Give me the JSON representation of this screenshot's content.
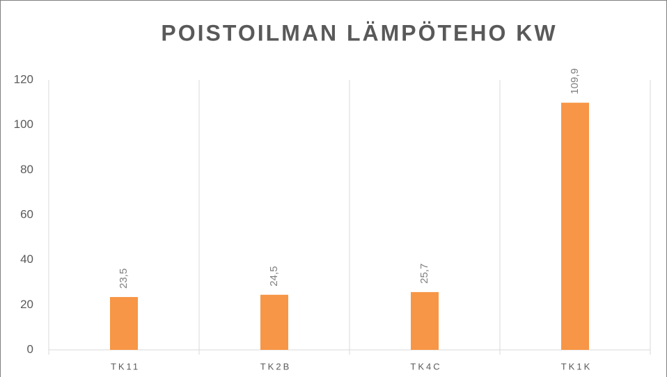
{
  "chart_data": {
    "type": "bar",
    "title": "POISTOILMAN LÄMPÖTEHO KW",
    "categories": [
      "TK11",
      "TK2B",
      "TK4C",
      "TK1K"
    ],
    "values": [
      23.5,
      24.5,
      25.7,
      109.9
    ],
    "value_labels": [
      "23,5",
      "24,5",
      "25,7",
      "109,9"
    ],
    "color": "#f79646",
    "ylim": [
      0,
      120
    ],
    "yticks": [
      0,
      20,
      40,
      60,
      80,
      100,
      120
    ]
  }
}
